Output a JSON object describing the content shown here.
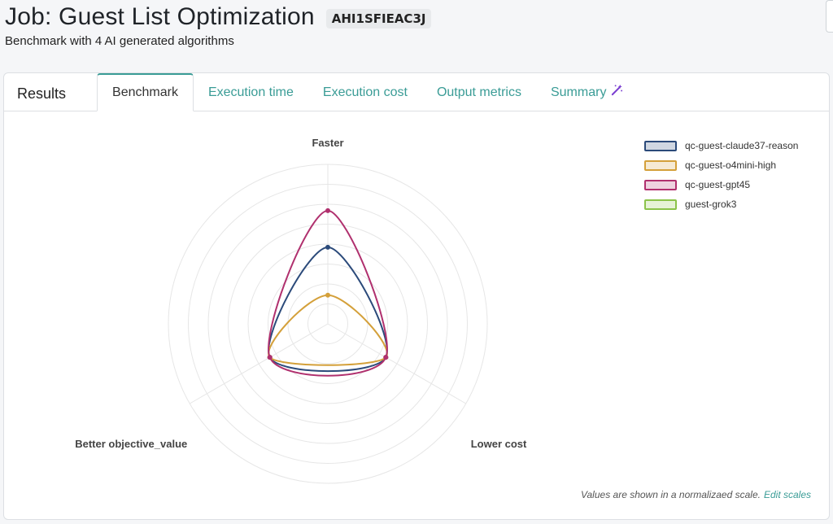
{
  "header": {
    "title": "Job: Guest List Optimization",
    "job_id": "AHI1SFIEAC3J",
    "subtitle": "Benchmark with 4 AI generated algorithms"
  },
  "tabs": {
    "results": "Results",
    "items": [
      {
        "label": "Benchmark",
        "active": true
      },
      {
        "label": "Execution time",
        "active": false
      },
      {
        "label": "Execution cost",
        "active": false
      },
      {
        "label": "Output metrics",
        "active": false
      },
      {
        "label": "Summary",
        "active": false,
        "icon": "magic-wand-icon"
      }
    ]
  },
  "chart_data": {
    "type": "radar",
    "axes": [
      "Faster",
      "Lower cost",
      "Better objective_value"
    ],
    "rmax": 1.0,
    "rings": 8,
    "series": [
      {
        "name": "qc-guest-claude37-reason",
        "color": "#2b4a7a",
        "values": [
          0.48,
          0.42,
          0.42
        ]
      },
      {
        "name": "qc-guest-o4mini-high",
        "color": "#d4a03a",
        "values": [
          0.18,
          0.42,
          0.42
        ]
      },
      {
        "name": "qc-guest-gpt45",
        "color": "#b0306e",
        "values": [
          0.71,
          0.42,
          0.42
        ]
      },
      {
        "name": "guest-grok3",
        "color": "#8bc34a",
        "values": []
      }
    ]
  },
  "footnote": {
    "text": "Values are shown in a normalizaed scale.",
    "link": "Edit scales"
  }
}
